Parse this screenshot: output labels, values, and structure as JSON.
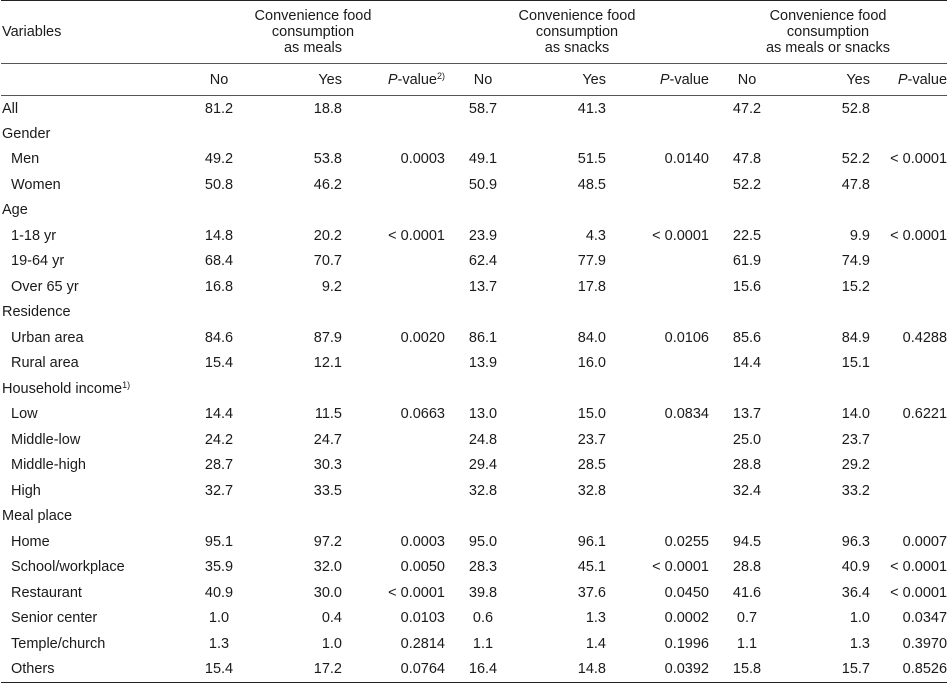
{
  "header": {
    "variables": "Variables",
    "groups": [
      {
        "lines": [
          "Convenience food",
          "consumption",
          "as meals"
        ]
      },
      {
        "lines": [
          "Convenience food",
          "consumption",
          "as snacks"
        ]
      },
      {
        "lines": [
          "Convenience food",
          "consumption",
          "as meals or snacks"
        ]
      }
    ],
    "no": "No",
    "yes": "Yes",
    "p_italic": "P",
    "p_rest": "-value",
    "p_first_sup": "2)"
  },
  "sections": [
    {
      "label": "All",
      "rows": [],
      "values": [
        "81.2",
        "18.8",
        "",
        "58.7",
        "41.3",
        "",
        "47.2",
        "52.8",
        ""
      ]
    },
    {
      "label": "Gender",
      "rows": [
        {
          "label": "Men",
          "values": [
            "49.2",
            "53.8",
            "0.0003",
            "49.1",
            "51.5",
            "0.0140",
            "47.8",
            "52.2",
            "< 0.0001"
          ]
        },
        {
          "label": "Women",
          "values": [
            "50.8",
            "46.2",
            "",
            "50.9",
            "48.5",
            "",
            "52.2",
            "47.8",
            ""
          ]
        }
      ]
    },
    {
      "label": "Age",
      "rows": [
        {
          "label": "1-18 yr",
          "values": [
            "14.8",
            "20.2",
            "< 0.0001",
            "23.9",
            "4.3",
            "< 0.0001",
            "22.5",
            "9.9",
            "< 0.0001"
          ]
        },
        {
          "label": "19-64 yr",
          "values": [
            "68.4",
            "70.7",
            "",
            "62.4",
            "77.9",
            "",
            "61.9",
            "74.9",
            ""
          ]
        },
        {
          "label": "Over 65 yr",
          "values": [
            "16.8",
            "9.2",
            "",
            "13.7",
            "17.8",
            "",
            "15.6",
            "15.2",
            ""
          ]
        }
      ]
    },
    {
      "label": "Residence",
      "rows": [
        {
          "label": "Urban area",
          "values": [
            "84.6",
            "87.9",
            "0.0020",
            "86.1",
            "84.0",
            "0.0106",
            "85.6",
            "84.9",
            "0.4288"
          ]
        },
        {
          "label": "Rural area",
          "values": [
            "15.4",
            "12.1",
            "",
            "13.9",
            "16.0",
            "",
            "14.4",
            "15.1",
            ""
          ]
        }
      ]
    },
    {
      "label": "Household income",
      "sup": "1)",
      "rows": [
        {
          "label": "Low",
          "values": [
            "14.4",
            "11.5",
            "0.0663",
            "13.0",
            "15.0",
            "0.0834",
            "13.7",
            "14.0",
            "0.6221"
          ]
        },
        {
          "label": "Middle-low",
          "values": [
            "24.2",
            "24.7",
            "",
            "24.8",
            "23.7",
            "",
            "25.0",
            "23.7",
            ""
          ]
        },
        {
          "label": "Middle-high",
          "values": [
            "28.7",
            "30.3",
            "",
            "29.4",
            "28.5",
            "",
            "28.8",
            "29.2",
            ""
          ]
        },
        {
          "label": "High",
          "values": [
            "32.7",
            "33.5",
            "",
            "32.8",
            "32.8",
            "",
            "32.4",
            "33.2",
            ""
          ]
        }
      ]
    },
    {
      "label": "Meal place",
      "rows": [
        {
          "label": "Home",
          "values": [
            "95.1",
            "97.2",
            "0.0003",
            "95.0",
            "96.1",
            "0.0255",
            "94.5",
            "96.3",
            "0.0007"
          ]
        },
        {
          "label": "School/workplace",
          "values": [
            "35.9",
            "32.0",
            "0.0050",
            "28.3",
            "45.1",
            "< 0.0001",
            "28.8",
            "40.9",
            "< 0.0001"
          ]
        },
        {
          "label": "Restaurant",
          "values": [
            "40.9",
            "30.0",
            "< 0.0001",
            "39.8",
            "37.6",
            "0.0450",
            "41.6",
            "36.4",
            "< 0.0001"
          ]
        },
        {
          "label": "Senior center",
          "values": [
            "1.0",
            "0.4",
            "0.0103",
            "0.6",
            "1.3",
            "0.0002",
            "0.7",
            "1.0",
            "0.0347"
          ]
        },
        {
          "label": "Temple/church",
          "values": [
            "1.3",
            "1.0",
            "0.2814",
            "1.1",
            "1.4",
            "0.1996",
            "1.1",
            "1.3",
            "0.3970"
          ]
        },
        {
          "label": "Others",
          "values": [
            "15.4",
            "17.2",
            "0.0764",
            "16.4",
            "14.8",
            "0.0392",
            "15.8",
            "15.7",
            "0.8526"
          ]
        }
      ]
    }
  ]
}
